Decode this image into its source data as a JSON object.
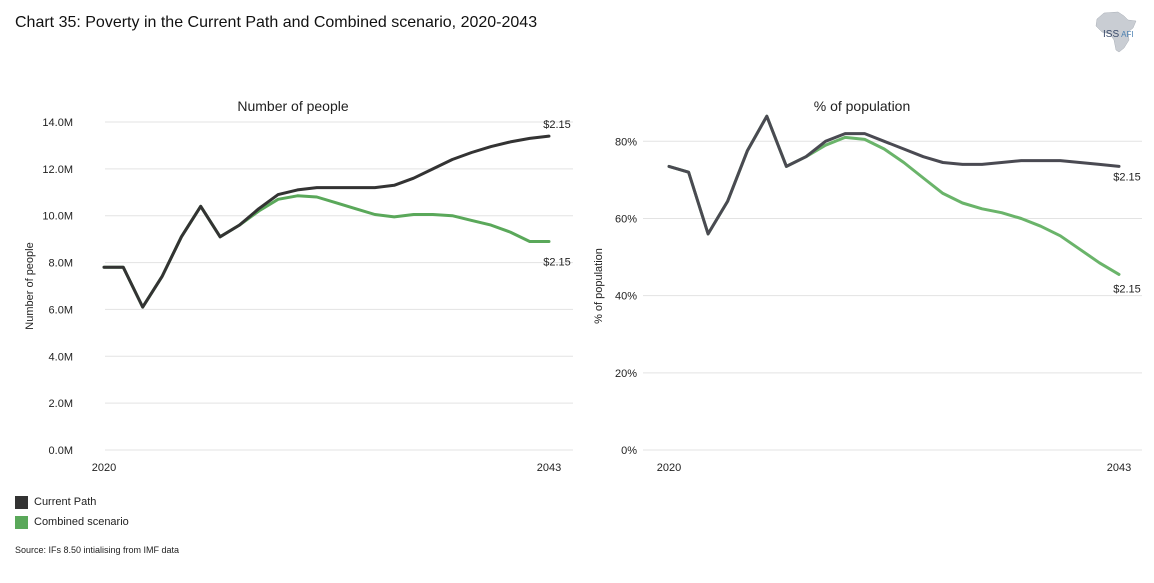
{
  "title": "Chart 35: Poverty in the Current Path and Combined scenario, 2020-2043",
  "logo": {
    "name": "ISS",
    "sub": "AFI"
  },
  "legend": [
    {
      "label": "Current Path",
      "color": "#333333"
    },
    {
      "label": "Combined scenario",
      "color": "#5aa85a"
    }
  ],
  "source": "Source: IFs 8.50 intialising from IMF data",
  "chart_data": [
    {
      "type": "line",
      "title": "Number of people",
      "xlabel": "",
      "ylabel": "Number of people",
      "xlim": [
        2020,
        2043
      ],
      "ylim": [
        0,
        14
      ],
      "yticks": [
        0,
        2,
        4,
        6,
        8,
        10,
        12,
        14
      ],
      "ytick_labels": [
        "0.0M",
        "2.0M",
        "4.0M",
        "6.0M",
        "8.0M",
        "10.0M",
        "12.0M",
        "14.0M"
      ],
      "xtick_labels": [
        "2020",
        "2043"
      ],
      "x": [
        2020,
        2021,
        2022,
        2023,
        2024,
        2025,
        2026,
        2027,
        2028,
        2029,
        2030,
        2031,
        2032,
        2033,
        2034,
        2035,
        2036,
        2037,
        2038,
        2039,
        2040,
        2041,
        2042,
        2043
      ],
      "series": [
        {
          "name": "Current Path",
          "color": "#333333",
          "values": [
            7.8,
            7.8,
            6.1,
            7.4,
            9.1,
            10.4,
            9.1,
            9.6,
            10.3,
            10.9,
            11.1,
            11.2,
            11.2,
            11.2,
            11.2,
            11.3,
            11.6,
            12.0,
            12.4,
            12.7,
            12.95,
            13.15,
            13.3,
            13.4
          ]
        },
        {
          "name": "Combined scenario",
          "color": "#5aa85a",
          "values": [
            7.8,
            7.8,
            6.1,
            7.4,
            9.1,
            10.4,
            9.1,
            9.6,
            10.2,
            10.7,
            10.85,
            10.8,
            10.55,
            10.3,
            10.05,
            9.95,
            10.05,
            10.05,
            10.0,
            9.8,
            9.6,
            9.3,
            8.9,
            8.9
          ]
        }
      ],
      "annotations": [
        "$2.15",
        "$2.15"
      ]
    },
    {
      "type": "line",
      "title": "% of population",
      "xlabel": "",
      "ylabel": "% of population",
      "xlim": [
        2020,
        2043
      ],
      "ylim": [
        0,
        85
      ],
      "yticks": [
        0,
        20,
        40,
        60,
        80
      ],
      "ytick_labels": [
        "0%",
        "20%",
        "40%",
        "60%",
        "80%"
      ],
      "xtick_labels": [
        "2020",
        "2043"
      ],
      "x": [
        2020,
        2021,
        2022,
        2023,
        2024,
        2025,
        2026,
        2027,
        2028,
        2029,
        2030,
        2031,
        2032,
        2033,
        2034,
        2035,
        2036,
        2037,
        2038,
        2039,
        2040,
        2041,
        2042,
        2043
      ],
      "series": [
        {
          "name": "Current Path",
          "color": "#4a4a52",
          "values": [
            73.5,
            72,
            56,
            64.5,
            77.5,
            86.5,
            73.5,
            76,
            80,
            82,
            82,
            80,
            78,
            76,
            74.5,
            74,
            74,
            74.5,
            75,
            75,
            75,
            74.5,
            74,
            73.5
          ]
        },
        {
          "name": "Combined scenario",
          "color": "#6ab46a",
          "values": [
            73.5,
            72,
            56,
            64.5,
            77.5,
            86.5,
            73.5,
            76,
            79,
            81,
            80.5,
            78,
            74.5,
            70.5,
            66.5,
            64,
            62.5,
            61.5,
            60,
            58,
            55.5,
            52,
            48.5,
            45.5
          ]
        }
      ],
      "annotations": [
        "$2.15",
        "$2.15"
      ]
    }
  ]
}
